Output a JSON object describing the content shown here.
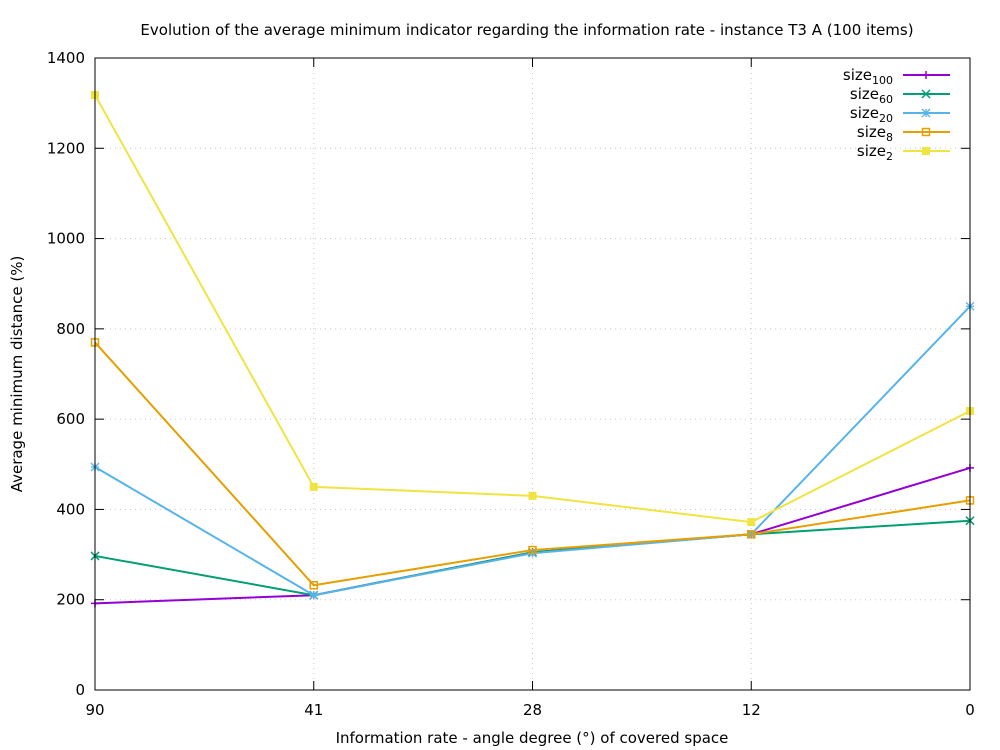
{
  "chart_data": {
    "type": "line",
    "title": "Evolution of the average minimum indicator regarding the information rate - instance T3 A (100 items)",
    "xlabel": "Information rate - angle degree (°)  of covered space",
    "ylabel": "Average minimum distance (%)",
    "categories": [
      "90",
      "41",
      "28",
      "12",
      "0"
    ],
    "ylim": [
      0,
      1400
    ],
    "yticks": [
      0,
      200,
      400,
      600,
      800,
      1000,
      1200,
      1400
    ],
    "grid": true,
    "legend_position": "top-right",
    "series": [
      {
        "name": "size",
        "sub": "100",
        "color": "#9400d3",
        "marker": "plus",
        "values": [
          192,
          210,
          305,
          345,
          492
        ]
      },
      {
        "name": "size",
        "sub": "60",
        "color": "#009e73",
        "marker": "cross",
        "values": [
          297,
          210,
          305,
          345,
          375
        ]
      },
      {
        "name": "size",
        "sub": "20",
        "color": "#56b4e9",
        "marker": "star",
        "values": [
          494,
          210,
          303,
          345,
          850
        ]
      },
      {
        "name": "size",
        "sub": "8",
        "color": "#e69f00",
        "marker": "square-open",
        "values": [
          770,
          232,
          310,
          345,
          420
        ]
      },
      {
        "name": "size",
        "sub": "2",
        "color": "#f0e442",
        "marker": "square-filled",
        "values": [
          1318,
          450,
          430,
          372,
          618
        ]
      }
    ]
  }
}
